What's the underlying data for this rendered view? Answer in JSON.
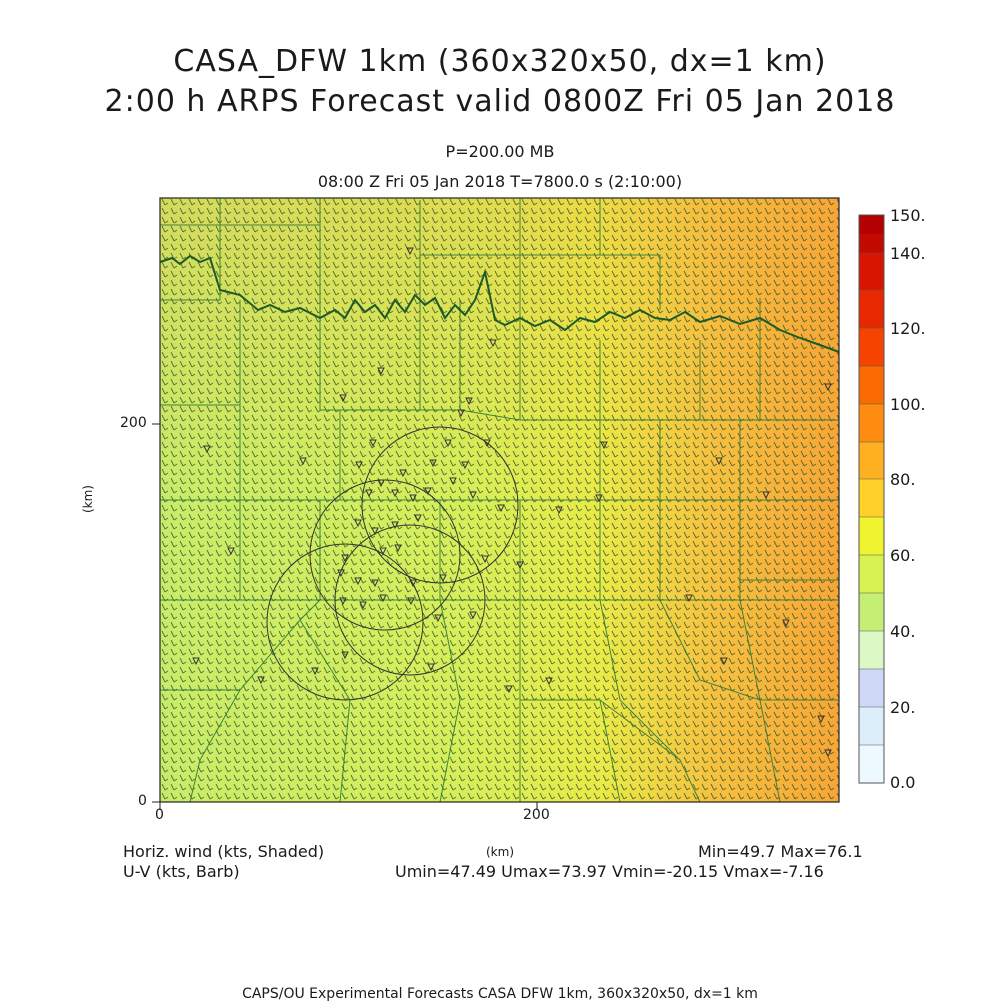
{
  "title": {
    "line1": "CASA_DFW 1km (360x320x50, dx=1 km)",
    "line2": "2:00 h ARPS Forecast valid 0800Z Fri 05 Jan 2018"
  },
  "subtitle": {
    "level": "P=200.00 MB",
    "time": "08:00 Z Fri 05 Jan 2018    T=7800.0 s (2:10:00)"
  },
  "axes": {
    "x_label": "(km)",
    "y_label": "(km)",
    "x_ticks": [
      "0",
      "200"
    ],
    "y_ticks": [
      "0",
      "200"
    ]
  },
  "colorbar": {
    "labels": [
      "150.",
      "140.",
      "120.",
      "100.",
      "80.",
      "60.",
      "40.",
      "20.",
      "0.0"
    ],
    "colors": [
      "#b30000",
      "#cc1100",
      "#e02200",
      "#f04000",
      "#ff7a00",
      "#ffa000",
      "#ffc820",
      "#ffee30",
      "#e8fa3c",
      "#c8f060",
      "#b0ea78",
      "#d8f8c0",
      "#c8d0f8",
      "#dceefa",
      "#eef8ff"
    ]
  },
  "footer": {
    "left1": "Horiz. wind (kts, Shaded)",
    "left2": "U-V (kts, Barb)",
    "center_unit": "(km)",
    "minmax": "Min=49.7  Max=76.1",
    "uv_range": "Umin=47.49  Umax=73.97  Vmin=-20.15  Vmax=-7.16"
  },
  "credit": "CAPS/OU Experimental Forecasts  CASA DFW 1km, 360x320x50, dx=1 km",
  "field": {
    "variable": "Horizontal wind speed",
    "units": "kts",
    "min": 49.7,
    "max": 76.1,
    "colors": {
      "low": "#c8f060",
      "mid": "#e8f04c",
      "high": "#f8b040",
      "peak": "#f8a030"
    }
  }
}
